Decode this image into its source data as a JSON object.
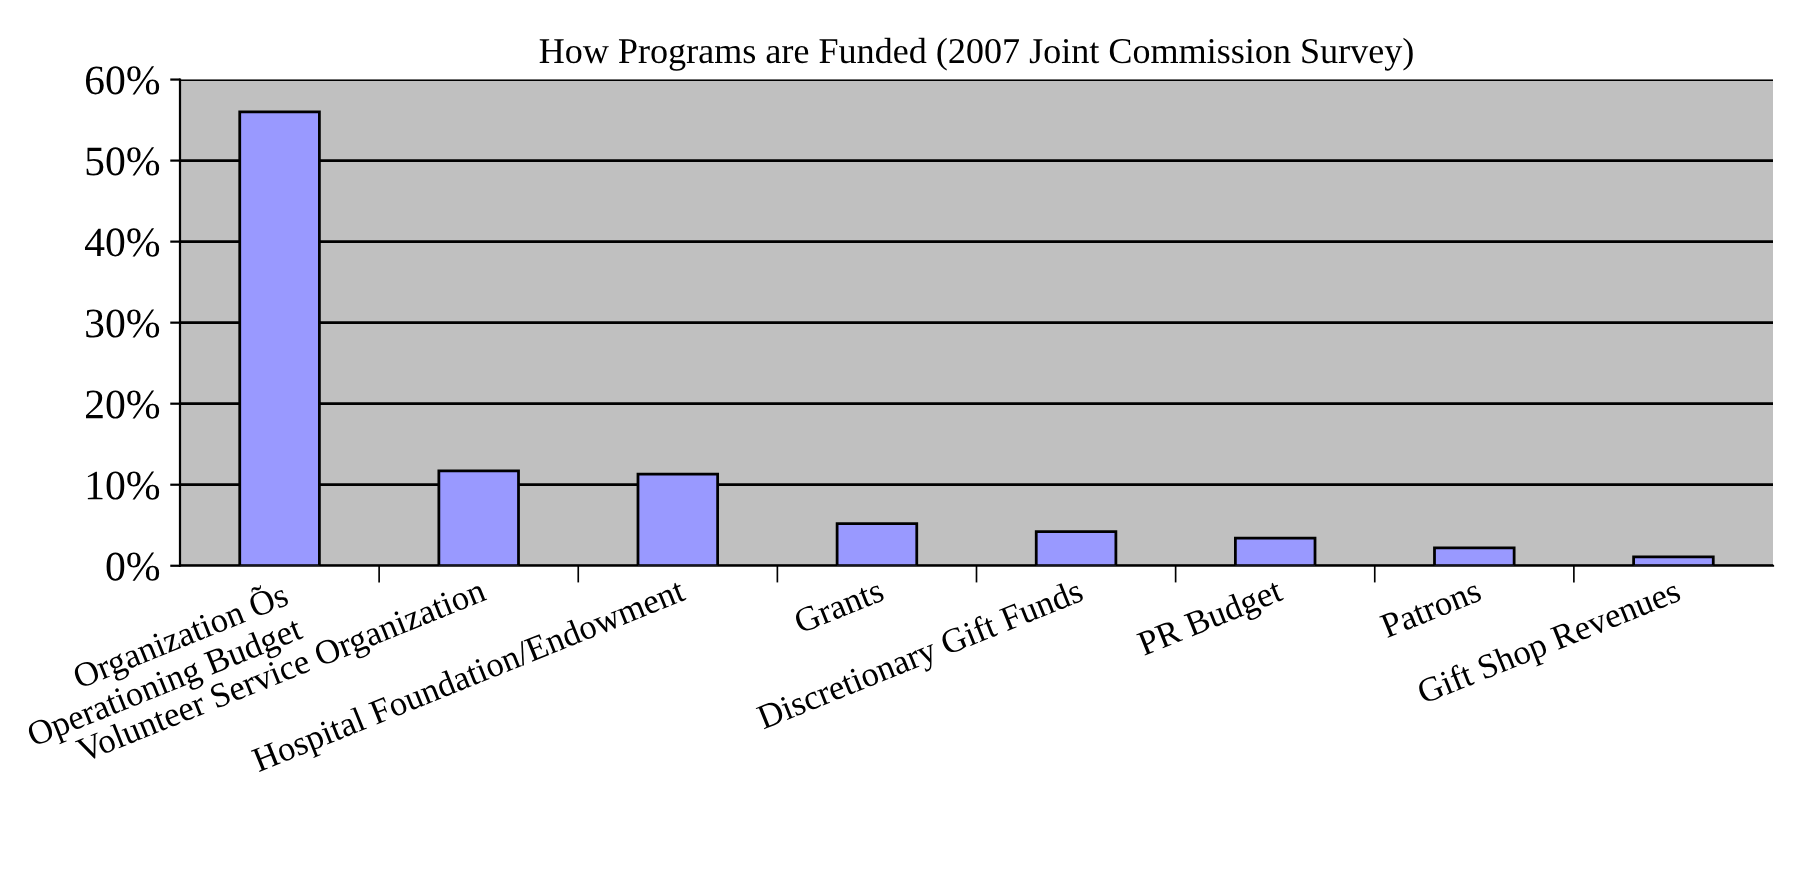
{
  "chart_data": {
    "type": "bar",
    "title": "How Programs are Funded (2007 Joint Commission Survey)",
    "categories": [
      "Organization Õs\nOperationing Budget",
      "Volunteer Service Organization",
      "Hospital Foundation/Endowment",
      "Grants",
      "Discretionary Gift Funds",
      "PR Budget",
      "Patrons",
      "Gift Shop Revenues"
    ],
    "values": [
      56,
      11.7,
      11.3,
      5.2,
      4.2,
      3.4,
      2.2,
      1.1
    ],
    "color": "#9999ff",
    "ylim": [
      0,
      60
    ],
    "yticks": [
      {
        "value": 0,
        "label": "0%"
      },
      {
        "value": 10,
        "label": "10%"
      },
      {
        "value": 20,
        "label": "20%"
      },
      {
        "value": 30,
        "label": "30%"
      },
      {
        "value": 40,
        "label": "40%"
      },
      {
        "value": 50,
        "label": "50%"
      },
      {
        "value": 60,
        "label": "60%"
      }
    ],
    "grid": "y"
  }
}
